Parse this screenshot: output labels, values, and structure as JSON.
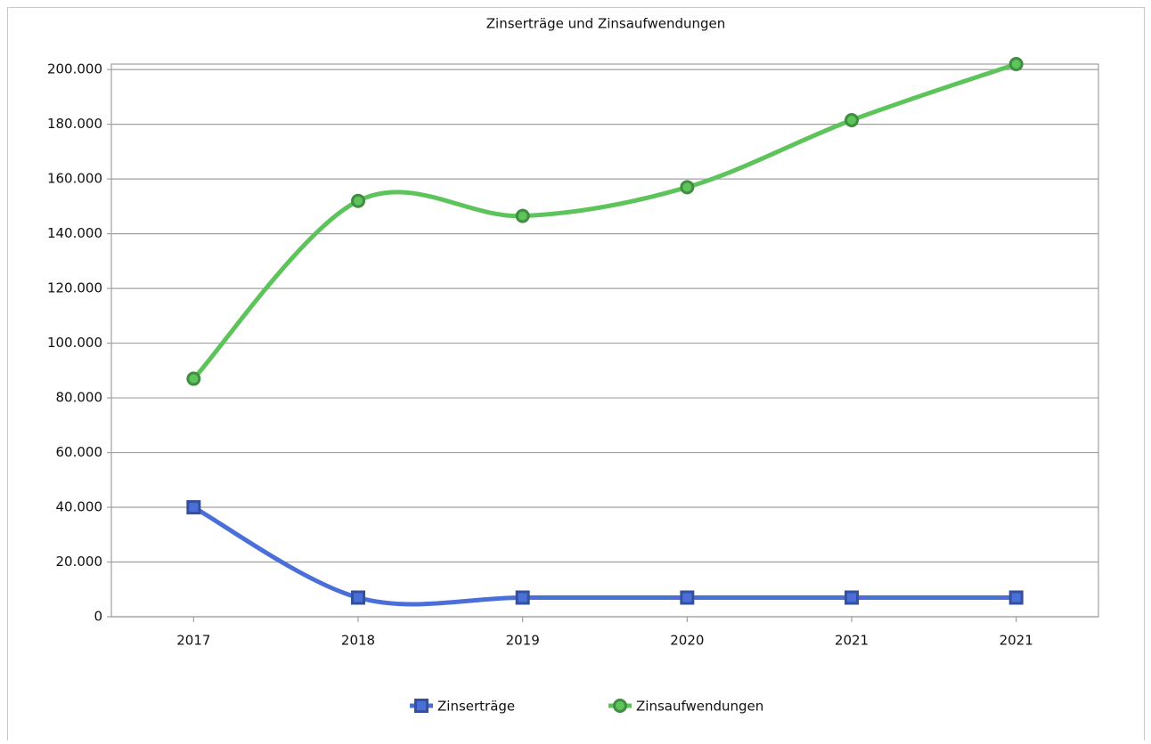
{
  "chart_data": {
    "type": "line",
    "title": "Zinserträge und Zinsaufwendungen",
    "categories": [
      "2017",
      "2018",
      "2019",
      "2020",
      "2021",
      "2021"
    ],
    "series": [
      {
        "name": "Zinserträge",
        "color": "#4a6fd8",
        "marker": "square",
        "values": [
          40000,
          7000,
          7000,
          7000,
          7000,
          7000
        ]
      },
      {
        "name": "Zinsaufwendungen",
        "color": "#5cc45a",
        "marker": "circle",
        "values": [
          87000,
          152000,
          146500,
          157000,
          181500,
          202000
        ]
      }
    ],
    "ylim": [
      0,
      202000
    ],
    "yticks": [
      0,
      {
        "value": 20000,
        "label": "20.000"
      },
      {
        "value": 40000,
        "label": "40.000"
      },
      {
        "value": 60000,
        "label": "60.000"
      },
      {
        "value": 80000,
        "label": "80.000"
      },
      {
        "value": 100000,
        "label": "100.000"
      },
      {
        "value": 120000,
        "label": "120.000"
      },
      {
        "value": 140000,
        "label": "140.000"
      },
      {
        "value": 160000,
        "label": "160.000"
      },
      {
        "value": 180000,
        "label": "180.000"
      },
      {
        "value": 200000,
        "label": "200.000"
      }
    ],
    "grid": true,
    "smooth": true,
    "legend": "bottom"
  }
}
